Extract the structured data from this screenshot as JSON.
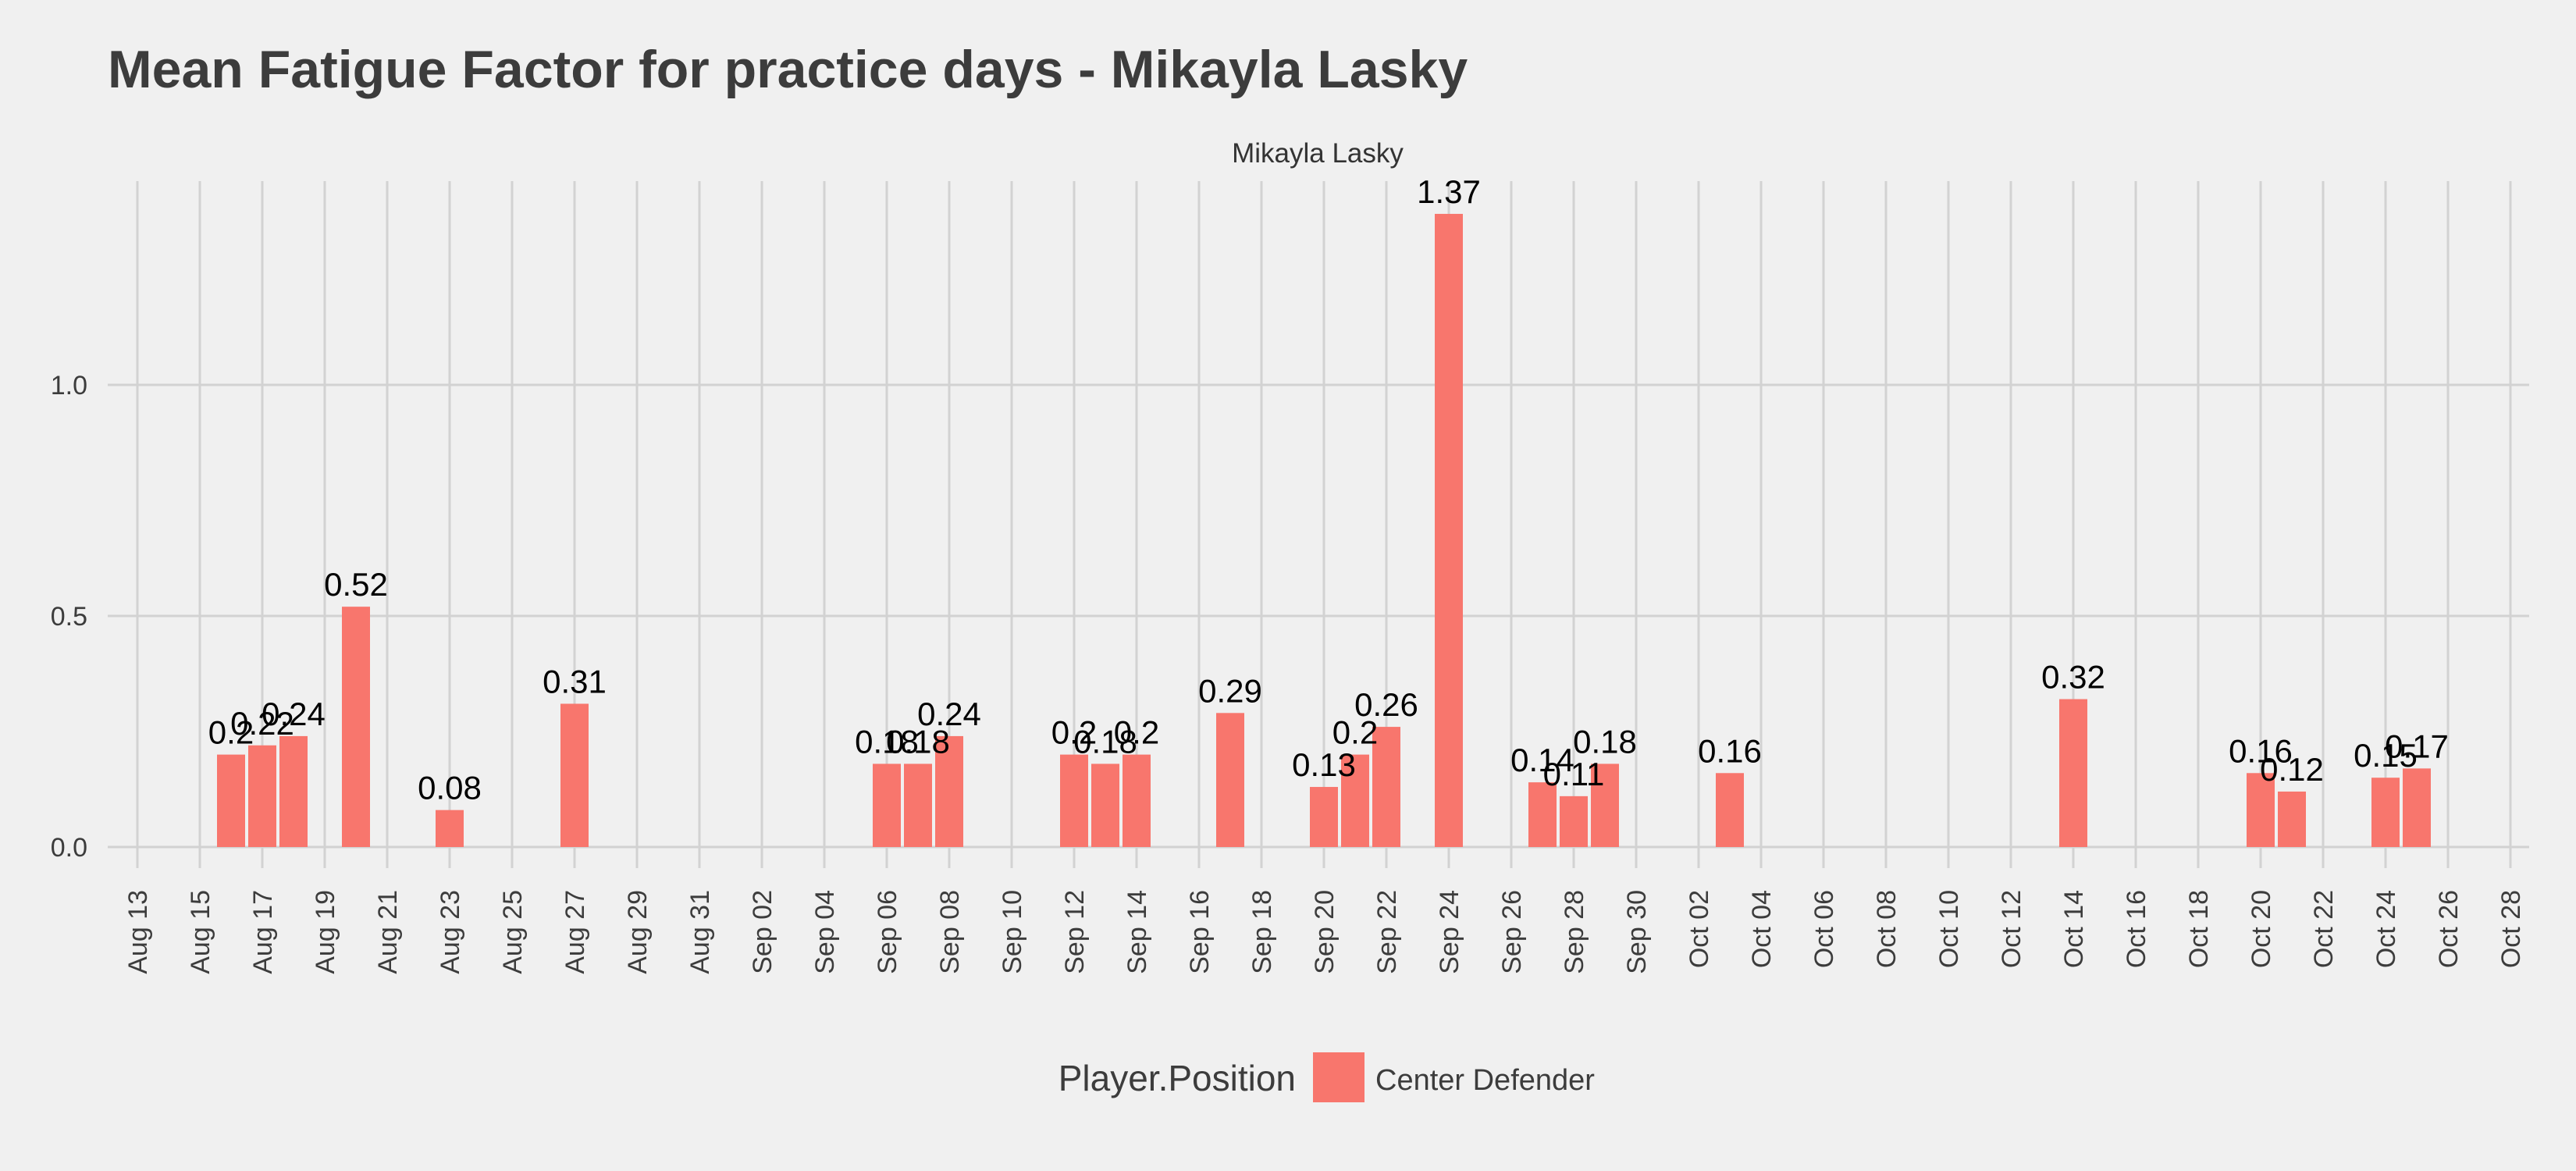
{
  "chart_data": {
    "type": "bar",
    "title": "Mean Fatigue Factor for practice days -  Mikayla Lasky",
    "facet_label": "Mikayla Lasky",
    "xlabel": "",
    "ylabel": "",
    "x_range": [
      "2023-08-13",
      "2023-10-28"
    ],
    "y_range": [
      -0.05,
      1.37
    ],
    "y_ticks": [
      {
        "value": 0.0,
        "label": "0.0"
      },
      {
        "value": 0.5,
        "label": "0.5"
      },
      {
        "value": 1.0,
        "label": "1.0"
      }
    ],
    "x_ticks": [
      {
        "date": "2023-08-13",
        "label": "Aug 13"
      },
      {
        "date": "2023-08-15",
        "label": "Aug 15"
      },
      {
        "date": "2023-08-17",
        "label": "Aug 17"
      },
      {
        "date": "2023-08-19",
        "label": "Aug 19"
      },
      {
        "date": "2023-08-21",
        "label": "Aug 21"
      },
      {
        "date": "2023-08-23",
        "label": "Aug 23"
      },
      {
        "date": "2023-08-25",
        "label": "Aug 25"
      },
      {
        "date": "2023-08-27",
        "label": "Aug 27"
      },
      {
        "date": "2023-08-29",
        "label": "Aug 29"
      },
      {
        "date": "2023-08-31",
        "label": "Aug 31"
      },
      {
        "date": "2023-09-02",
        "label": "Sep 02"
      },
      {
        "date": "2023-09-04",
        "label": "Sep 04"
      },
      {
        "date": "2023-09-06",
        "label": "Sep 06"
      },
      {
        "date": "2023-09-08",
        "label": "Sep 08"
      },
      {
        "date": "2023-09-10",
        "label": "Sep 10"
      },
      {
        "date": "2023-09-12",
        "label": "Sep 12"
      },
      {
        "date": "2023-09-14",
        "label": "Sep 14"
      },
      {
        "date": "2023-09-16",
        "label": "Sep 16"
      },
      {
        "date": "2023-09-18",
        "label": "Sep 18"
      },
      {
        "date": "2023-09-20",
        "label": "Sep 20"
      },
      {
        "date": "2023-09-22",
        "label": "Sep 22"
      },
      {
        "date": "2023-09-24",
        "label": "Sep 24"
      },
      {
        "date": "2023-09-26",
        "label": "Sep 26"
      },
      {
        "date": "2023-09-28",
        "label": "Sep 28"
      },
      {
        "date": "2023-09-30",
        "label": "Sep 30"
      },
      {
        "date": "2023-10-02",
        "label": "Oct 02"
      },
      {
        "date": "2023-10-04",
        "label": "Oct 04"
      },
      {
        "date": "2023-10-06",
        "label": "Oct 06"
      },
      {
        "date": "2023-10-08",
        "label": "Oct 08"
      },
      {
        "date": "2023-10-10",
        "label": "Oct 10"
      },
      {
        "date": "2023-10-12",
        "label": "Oct 12"
      },
      {
        "date": "2023-10-14",
        "label": "Oct 14"
      },
      {
        "date": "2023-10-16",
        "label": "Oct 16"
      },
      {
        "date": "2023-10-18",
        "label": "Oct 18"
      },
      {
        "date": "2023-10-20",
        "label": "Oct 20"
      },
      {
        "date": "2023-10-22",
        "label": "Oct 22"
      },
      {
        "date": "2023-10-24",
        "label": "Oct 24"
      },
      {
        "date": "2023-10-26",
        "label": "Oct 26"
      },
      {
        "date": "2023-10-28",
        "label": "Oct 28"
      }
    ],
    "series": [
      {
        "name": "Center Defender",
        "color": "#f8766d",
        "points": [
          {
            "date": "2023-08-16",
            "value": 0.2,
            "label": "0.2"
          },
          {
            "date": "2023-08-17",
            "value": 0.22,
            "label": "0.22"
          },
          {
            "date": "2023-08-18",
            "value": 0.24,
            "label": "0.24"
          },
          {
            "date": "2023-08-20",
            "value": 0.52,
            "label": "0.52"
          },
          {
            "date": "2023-08-23",
            "value": 0.08,
            "label": "0.08"
          },
          {
            "date": "2023-08-27",
            "value": 0.31,
            "label": "0.31"
          },
          {
            "date": "2023-09-06",
            "value": 0.18,
            "label": "0.18"
          },
          {
            "date": "2023-09-07",
            "value": 0.18,
            "label": "0.18"
          },
          {
            "date": "2023-09-08",
            "value": 0.24,
            "label": "0.24"
          },
          {
            "date": "2023-09-12",
            "value": 0.2,
            "label": "0.2"
          },
          {
            "date": "2023-09-13",
            "value": 0.18,
            "label": "0.18"
          },
          {
            "date": "2023-09-14",
            "value": 0.2,
            "label": "0.2"
          },
          {
            "date": "2023-09-17",
            "value": 0.29,
            "label": "0.29"
          },
          {
            "date": "2023-09-20",
            "value": 0.13,
            "label": "0.13"
          },
          {
            "date": "2023-09-21",
            "value": 0.2,
            "label": "0.2"
          },
          {
            "date": "2023-09-22",
            "value": 0.26,
            "label": "0.26"
          },
          {
            "date": "2023-09-24",
            "value": 1.37,
            "label": "1.37"
          },
          {
            "date": "2023-09-27",
            "value": 0.14,
            "label": "0.14"
          },
          {
            "date": "2023-09-28",
            "value": 0.11,
            "label": "0.11"
          },
          {
            "date": "2023-09-29",
            "value": 0.18,
            "label": "0.18"
          },
          {
            "date": "2023-10-03",
            "value": 0.16,
            "label": "0.16"
          },
          {
            "date": "2023-10-14",
            "value": 0.32,
            "label": "0.32"
          },
          {
            "date": "2023-10-20",
            "value": 0.16,
            "label": "0.16"
          },
          {
            "date": "2023-10-21",
            "value": 0.12,
            "label": "0.12"
          },
          {
            "date": "2023-10-24",
            "value": 0.15,
            "label": "0.15"
          },
          {
            "date": "2023-10-25",
            "value": 0.17,
            "label": "0.17"
          }
        ]
      }
    ],
    "legend": {
      "title": "Player.Position",
      "placement": "bottom",
      "entries": [
        {
          "label": "Center Defender",
          "color": "#f8766d"
        }
      ]
    },
    "grid": true,
    "colors": {
      "background": "#f0f0f0",
      "grid": "#d2d2d2",
      "bar": "#f8766d"
    }
  }
}
